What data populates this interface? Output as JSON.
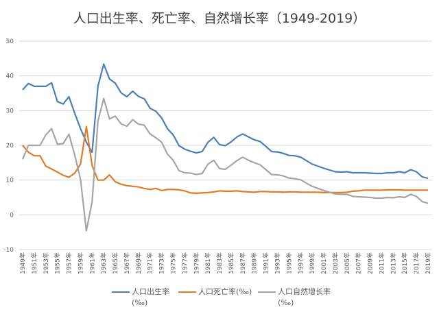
{
  "chart_data": {
    "type": "line",
    "title": "人口出生率、死亡率、自然增长率（1949-2019）",
    "xlabel": "",
    "ylabel": "",
    "ylim": [
      -10,
      50
    ],
    "yticks": [
      -10,
      0,
      10,
      20,
      30,
      40,
      50
    ],
    "grid": true,
    "legend_position": "bottom",
    "x": [
      1949,
      1950,
      1951,
      1952,
      1953,
      1954,
      1955,
      1956,
      1957,
      1958,
      1959,
      1960,
      1961,
      1962,
      1963,
      1964,
      1965,
      1966,
      1967,
      1968,
      1969,
      1970,
      1971,
      1972,
      1973,
      1974,
      1975,
      1976,
      1977,
      1978,
      1979,
      1980,
      1981,
      1982,
      1983,
      1984,
      1985,
      1986,
      1987,
      1988,
      1989,
      1990,
      1991,
      1992,
      1993,
      1994,
      1995,
      1996,
      1997,
      1998,
      1999,
      2000,
      2001,
      2002,
      2003,
      2004,
      2005,
      2006,
      2007,
      2008,
      2009,
      2010,
      2011,
      2012,
      2013,
      2014,
      2015,
      2016,
      2017,
      2018,
      2019
    ],
    "xtick_labels": [
      "1949年",
      "1951年",
      "1953年",
      "1955年",
      "1957年",
      "1959年",
      "1961年",
      "1963年",
      "1965年",
      "1967年",
      "1969年",
      "1971年",
      "1973年",
      "1975年",
      "1977年",
      "1979年",
      "1981年",
      "1983年",
      "1985年",
      "1987年",
      "1989年",
      "1991年",
      "1993年",
      "1995年",
      "1997年",
      "1999年",
      "2001年",
      "2003年",
      "2005年",
      "2007年",
      "2009年",
      "2011年",
      "2013年",
      "2015年",
      "2017年",
      "2019年"
    ],
    "series": [
      {
        "name": "人口出生率",
        "name_line2": "(‰)",
        "color": "#4a7ebb",
        "values": [
          36.0,
          37.8,
          37.0,
          37.0,
          37.0,
          38.0,
          32.6,
          31.9,
          34.0,
          29.2,
          24.8,
          20.9,
          18.0,
          37.0,
          43.4,
          39.1,
          37.9,
          35.1,
          34.0,
          35.6,
          34.1,
          33.4,
          30.7,
          29.8,
          27.9,
          24.8,
          23.0,
          19.9,
          18.9,
          18.3,
          17.8,
          18.2,
          20.9,
          22.3,
          20.2,
          19.9,
          21.0,
          22.4,
          23.3,
          22.4,
          21.6,
          21.1,
          19.7,
          18.2,
          18.1,
          17.7,
          17.1,
          17.0,
          16.6,
          15.6,
          14.6,
          14.0,
          13.4,
          12.9,
          12.4,
          12.3,
          12.4,
          12.1,
          12.1,
          12.1,
          12.0,
          11.9,
          11.9,
          12.1,
          12.1,
          12.4,
          12.1,
          13.0,
          12.4,
          10.9,
          10.5
        ]
      },
      {
        "name": "人口死亡率(‰)",
        "color": "#e07b2a",
        "values": [
          20.0,
          18.0,
          17.0,
          17.0,
          14.0,
          13.2,
          12.3,
          11.4,
          10.8,
          12.0,
          14.6,
          25.4,
          14.2,
          10.0,
          10.0,
          11.5,
          9.5,
          8.8,
          8.4,
          8.2,
          8.0,
          7.6,
          7.3,
          7.6,
          7.0,
          7.3,
          7.3,
          7.2,
          6.9,
          6.3,
          6.2,
          6.3,
          6.4,
          6.6,
          6.9,
          6.8,
          6.8,
          6.9,
          6.7,
          6.6,
          6.5,
          6.7,
          6.7,
          6.6,
          6.6,
          6.5,
          6.6,
          6.6,
          6.5,
          6.5,
          6.5,
          6.5,
          6.4,
          6.4,
          6.4,
          6.4,
          6.5,
          6.8,
          6.9,
          7.1,
          7.1,
          7.1,
          7.1,
          7.2,
          7.2,
          7.2,
          7.1,
          7.1,
          7.1,
          7.1,
          7.1
        ]
      },
      {
        "name": "人口自然增长率",
        "name_line2": "(‰)",
        "color": "#a5a5a5",
        "values": [
          16.0,
          20.0,
          20.0,
          20.0,
          23.0,
          24.8,
          20.3,
          20.5,
          23.2,
          17.2,
          10.2,
          -4.6,
          3.8,
          27.0,
          33.5,
          27.6,
          28.4,
          26.2,
          25.5,
          27.4,
          26.1,
          25.8,
          23.3,
          22.2,
          20.9,
          17.5,
          15.7,
          12.7,
          12.1,
          12.0,
          11.6,
          11.9,
          14.6,
          15.7,
          13.3,
          13.1,
          14.3,
          15.6,
          16.6,
          15.7,
          15.0,
          14.4,
          13.0,
          11.6,
          11.5,
          11.2,
          10.6,
          10.4,
          10.1,
          9.1,
          8.2,
          7.6,
          7.0,
          6.5,
          6.0,
          5.9,
          5.9,
          5.3,
          5.2,
          5.1,
          5.0,
          4.8,
          4.8,
          5.0,
          4.9,
          5.2,
          5.0,
          5.9,
          5.3,
          3.8,
          3.3
        ]
      }
    ]
  }
}
